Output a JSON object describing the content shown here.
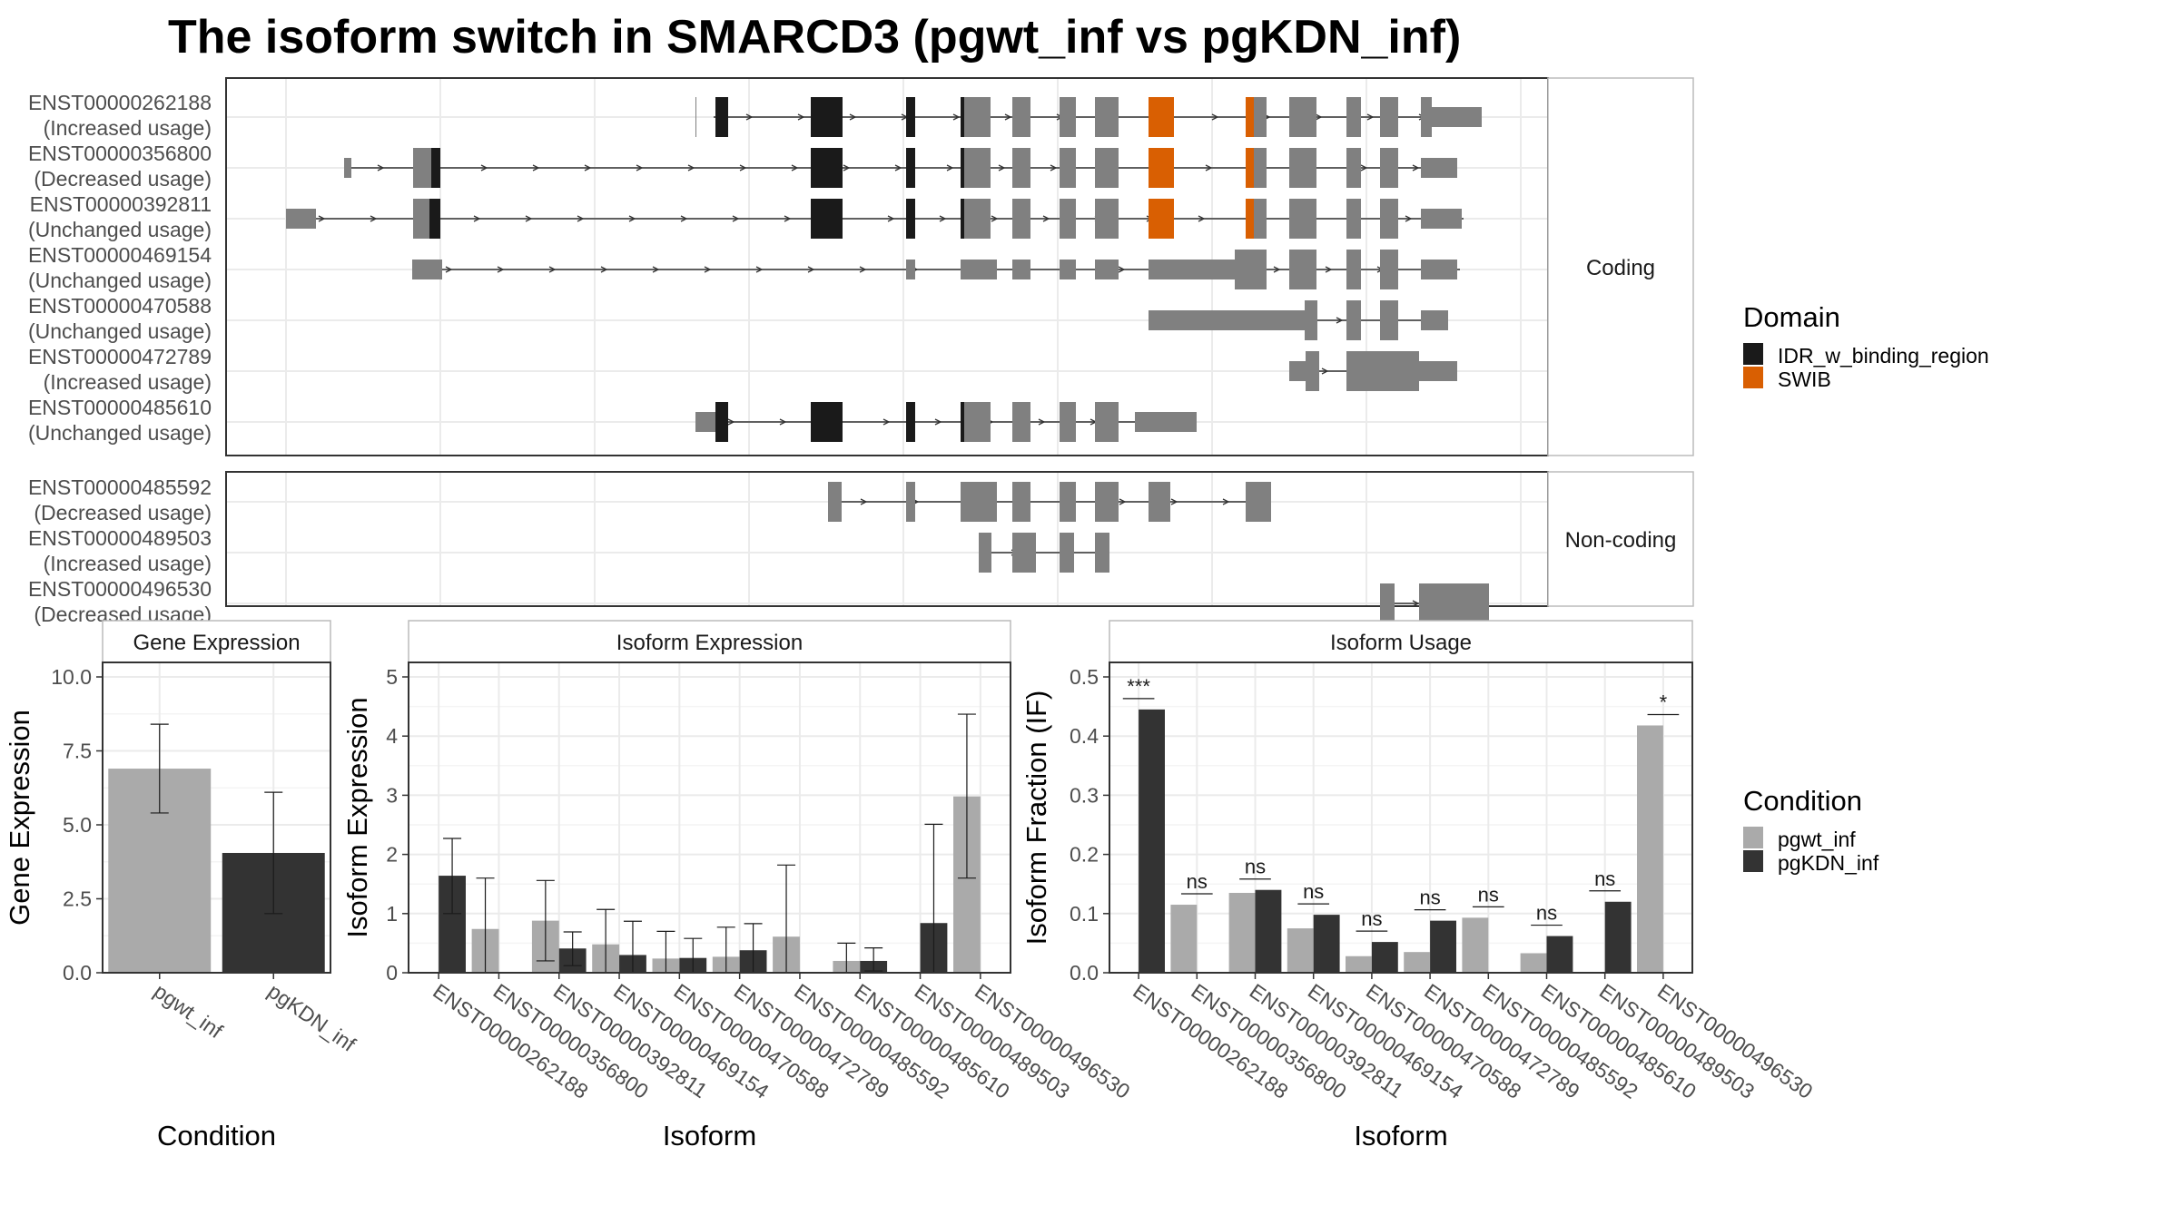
{
  "title": "The isoform switch in SMARCD3 (pgwt_inf vs pgKDN_inf)",
  "domain_legend": {
    "title": "Domain",
    "items": [
      {
        "label": "IDR_w_binding_region",
        "color": "#1a1a1a"
      },
      {
        "label": "SWIB",
        "color": "#d95f02"
      }
    ]
  },
  "condition_legend": {
    "title": "Condition",
    "items": [
      {
        "label": "pgwt_inf",
        "color": "#aaaaaa"
      },
      {
        "label": "pgKDN_inf",
        "color": "#333333"
      }
    ]
  },
  "isoform_panels": [
    {
      "label": "Coding",
      "isoforms": [
        {
          "id": "ENST00000262188",
          "status": "(Increased usage)"
        },
        {
          "id": "ENST00000356800",
          "status": "(Decreased usage)"
        },
        {
          "id": "ENST00000392811",
          "status": "(Unchanged usage)"
        },
        {
          "id": "ENST00000469154",
          "status": "(Unchanged usage)"
        },
        {
          "id": "ENST00000470588",
          "status": "(Unchanged usage)"
        },
        {
          "id": "ENST00000472789",
          "status": "(Increased usage)"
        },
        {
          "id": "ENST00000485610",
          "status": "(Unchanged usage)"
        }
      ]
    },
    {
      "label": "Non-coding",
      "isoforms": [
        {
          "id": "ENST00000485592",
          "status": "(Decreased usage)"
        },
        {
          "id": "ENST00000489503",
          "status": "(Increased usage)"
        },
        {
          "id": "ENST00000496530",
          "status": "(Decreased usage)"
        }
      ]
    }
  ],
  "chart_data": [
    {
      "type": "bar",
      "title": "Gene Expression",
      "xlabel": "Condition",
      "ylabel": "Gene Expression",
      "ylim": [
        0,
        10
      ],
      "yticks": [
        "0.0",
        "2.5",
        "5.0",
        "7.5",
        "10.0"
      ],
      "categories": [
        "pgwt_inf",
        "pgKDN_inf"
      ],
      "values": [
        6.9,
        4.05
      ],
      "error_low": [
        5.4,
        2.0
      ],
      "error_high": [
        8.4,
        6.1
      ]
    },
    {
      "type": "bar",
      "title": "Isoform Expression",
      "xlabel": "Isoform",
      "ylabel": "Isoform Expression",
      "ylim": [
        0,
        5
      ],
      "yticks": [
        "0",
        "1",
        "2",
        "3",
        "4",
        "5"
      ],
      "categories": [
        "ENST00000262188",
        "ENST00000356800",
        "ENST00000392811",
        "ENST00000469154",
        "ENST00000470588",
        "ENST00000472789",
        "ENST00000485592",
        "ENST00000485610",
        "ENST00000489503",
        "ENST00000496530"
      ],
      "series": [
        {
          "name": "pgwt_inf",
          "values": [
            0.0,
            0.74,
            0.88,
            0.48,
            0.24,
            0.27,
            0.61,
            0.2,
            0.0,
            2.98
          ],
          "error_low": [
            0,
            0,
            0.2,
            0,
            0,
            0,
            0,
            0,
            0,
            1.6
          ],
          "error_high": [
            0,
            1.6,
            1.56,
            1.07,
            0.7,
            0.77,
            1.82,
            0.5,
            0,
            4.37
          ]
        },
        {
          "name": "pgKDN_inf",
          "values": [
            1.64,
            0.0,
            0.41,
            0.3,
            0.25,
            0.38,
            0.0,
            0.2,
            0.84,
            0.0
          ],
          "error_low": [
            1.0,
            0,
            0.12,
            0,
            0,
            0,
            0,
            0.03,
            0,
            0
          ],
          "error_high": [
            2.27,
            0,
            0.69,
            0.87,
            0.58,
            0.83,
            0,
            0.42,
            2.51,
            0
          ]
        }
      ]
    },
    {
      "type": "bar",
      "title": "Isoform Usage",
      "xlabel": "Isoform",
      "ylabel": "Isoform Fraction (IF)",
      "ylim": [
        0,
        0.5
      ],
      "yticks": [
        "0.0",
        "0.1",
        "0.2",
        "0.3",
        "0.4",
        "0.5"
      ],
      "categories": [
        "ENST00000262188",
        "ENST00000356800",
        "ENST00000392811",
        "ENST00000469154",
        "ENST00000470588",
        "ENST00000472789",
        "ENST00000485592",
        "ENST00000485610",
        "ENST00000489503",
        "ENST00000496530"
      ],
      "series": [
        {
          "name": "pgwt_inf",
          "values": [
            0.0,
            0.115,
            0.135,
            0.075,
            0.028,
            0.035,
            0.093,
            0.033,
            0.0,
            0.418
          ]
        },
        {
          "name": "pgKDN_inf",
          "values": [
            0.445,
            0.0,
            0.14,
            0.098,
            0.052,
            0.088,
            0.0,
            0.062,
            0.12,
            0.0
          ]
        }
      ],
      "significance": [
        "***",
        "ns",
        "ns",
        "ns",
        "ns",
        "ns",
        "ns",
        "ns",
        "ns",
        "*"
      ]
    }
  ]
}
